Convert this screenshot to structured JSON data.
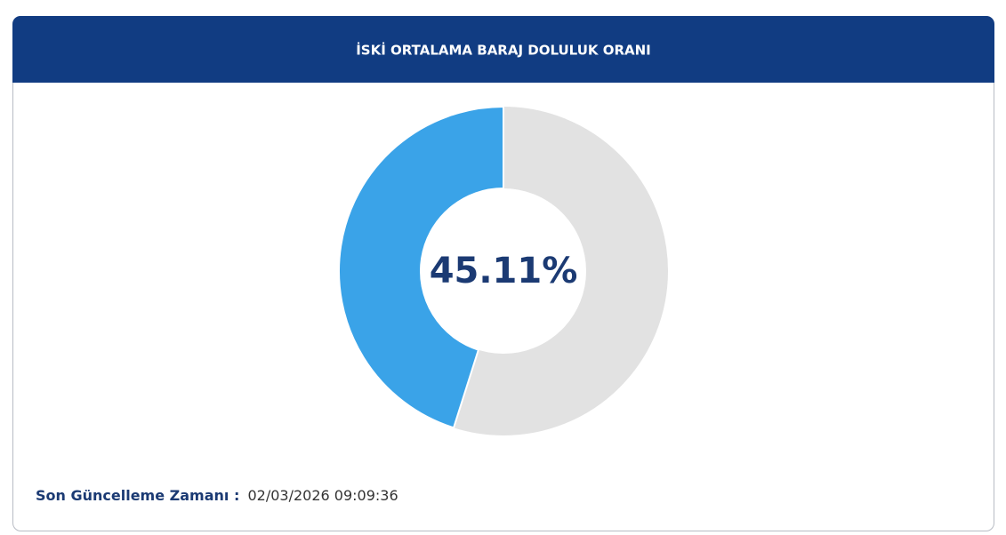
{
  "chart_data": {
    "type": "donut",
    "title": "İSKİ ORTALAMA BARAJ DOLULUK ORANI",
    "values": [
      45.11
    ],
    "value_labels": [
      "45.11%"
    ],
    "color": "#3aa3e8",
    "track_color": "#e2e2e2",
    "ylim": [
      0,
      100
    ]
  },
  "footer": {
    "label": "Son Güncelleme Zamanı :",
    "time": "02/03/2026 09:09:36"
  }
}
